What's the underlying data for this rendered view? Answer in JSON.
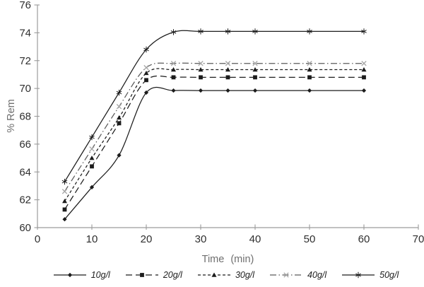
{
  "chart_data": {
    "type": "line",
    "title": "",
    "xlabel": "Time (min)",
    "ylabel": "% Rem",
    "x": [
      5,
      10,
      15,
      20,
      25,
      30,
      35,
      40,
      50,
      60
    ],
    "xlim": [
      0,
      70
    ],
    "ylim": [
      60,
      76
    ],
    "x_ticks": [
      0,
      10,
      20,
      30,
      40,
      50,
      60,
      70
    ],
    "y_ticks": [
      60,
      62,
      64,
      66,
      68,
      70,
      72,
      74,
      76
    ],
    "grid": false,
    "legend_position": "bottom",
    "series": [
      {
        "name": "10g/l",
        "marker": "diamond",
        "line": "solid",
        "color": "#1c1c1c",
        "marker_color": "#1c1c1c",
        "values": [
          60.6,
          62.9,
          65.2,
          69.7,
          69.85,
          69.85,
          69.85,
          69.85,
          69.85,
          69.85
        ]
      },
      {
        "name": "20g/l",
        "marker": "square",
        "line": "long-dash",
        "color": "#1c1c1c",
        "marker_color": "#1c1c1c",
        "values": [
          61.3,
          64.4,
          67.5,
          70.6,
          70.8,
          70.8,
          70.8,
          70.8,
          70.8,
          70.8
        ]
      },
      {
        "name": "30g/l",
        "marker": "triangle",
        "line": "short-dash",
        "color": "#1c1c1c",
        "marker_color": "#1c1c1c",
        "values": [
          61.9,
          65.0,
          67.9,
          71.1,
          71.35,
          71.35,
          71.35,
          71.35,
          71.35,
          71.35
        ]
      },
      {
        "name": "40g/l",
        "marker": "x-cross",
        "line": "dash-dot",
        "color": "#5a5a5a",
        "marker_color": "#a6a6a6",
        "values": [
          62.6,
          65.65,
          68.7,
          71.5,
          71.8,
          71.8,
          71.8,
          71.8,
          71.8,
          71.8
        ]
      },
      {
        "name": "50g/l",
        "marker": "asterisk",
        "line": "solid",
        "color": "#1c1c1c",
        "marker_color": "#1c1c1c",
        "values": [
          63.3,
          66.5,
          69.7,
          72.8,
          74.05,
          74.1,
          74.1,
          74.1,
          74.1,
          74.1
        ]
      }
    ],
    "colors": {
      "axis": "#9c9c9c",
      "tick_label": "#2e2e2e",
      "axis_label": "#6f6f6f",
      "legend_label": "#1f1f1f",
      "background": "#ffffff"
    }
  }
}
